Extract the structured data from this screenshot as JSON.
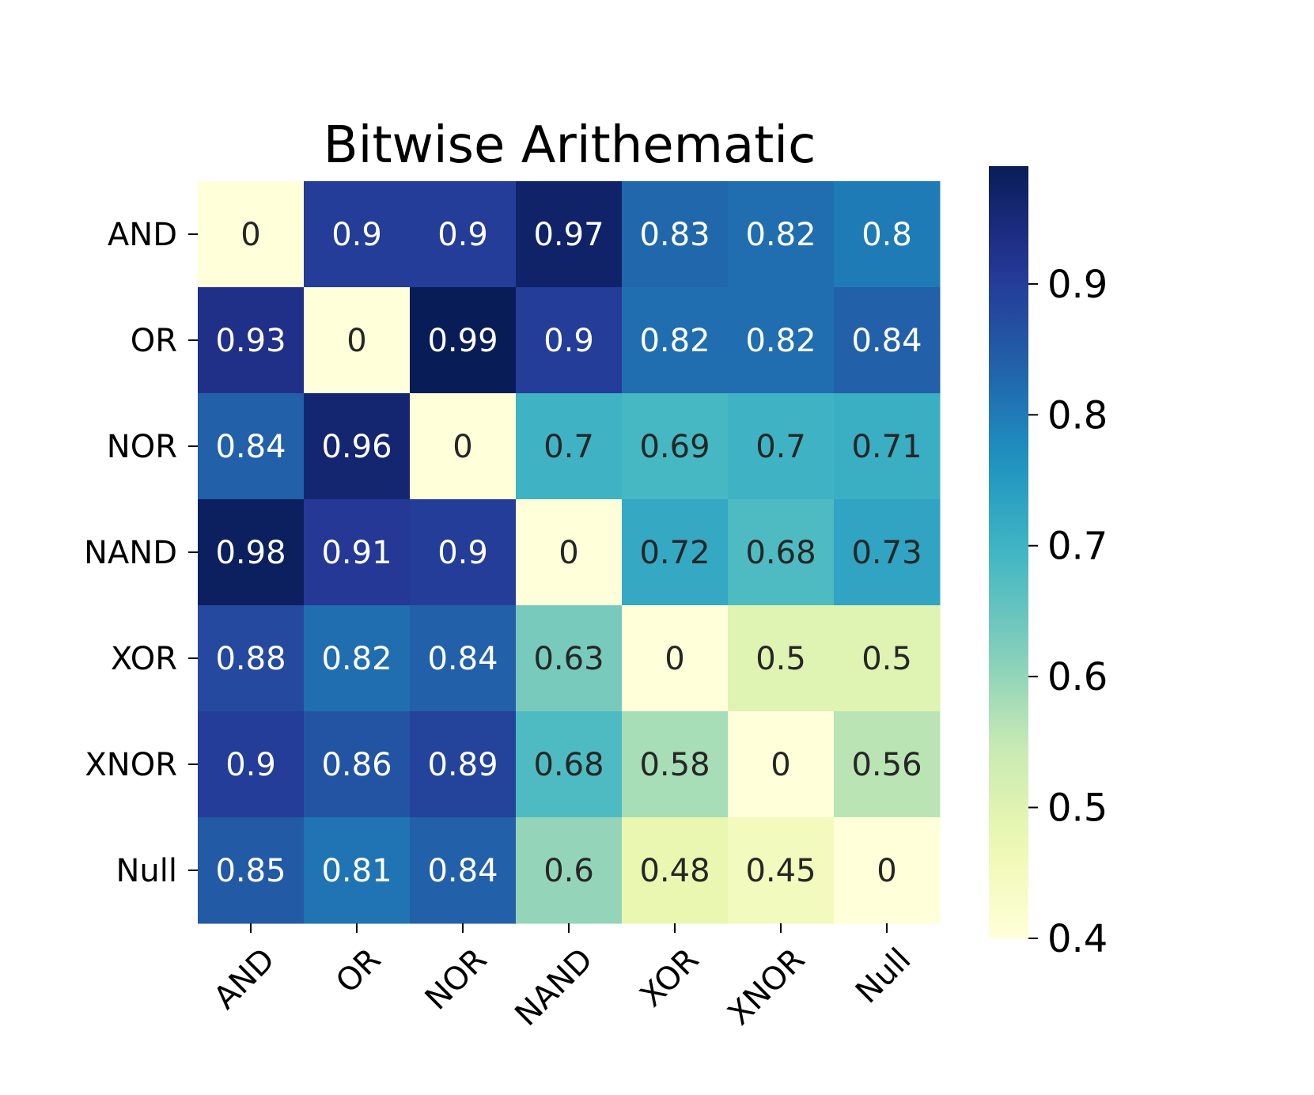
{
  "chart_data": {
    "type": "heatmap",
    "title": "Bitwise Arithematic",
    "rows": [
      "AND",
      "OR",
      "NOR",
      "NAND",
      "XOR",
      "XNOR",
      "Null"
    ],
    "columns": [
      "AND",
      "OR",
      "NOR",
      "NAND",
      "XOR",
      "XNOR",
      "Null"
    ],
    "values": [
      [
        0,
        0.9,
        0.9,
        0.97,
        0.83,
        0.82,
        0.8
      ],
      [
        0.93,
        0,
        0.99,
        0.9,
        0.82,
        0.82,
        0.84
      ],
      [
        0.84,
        0.96,
        0,
        0.7,
        0.69,
        0.7,
        0.71
      ],
      [
        0.98,
        0.91,
        0.9,
        0,
        0.72,
        0.68,
        0.73
      ],
      [
        0.88,
        0.82,
        0.84,
        0.63,
        0,
        0.5,
        0.5
      ],
      [
        0.9,
        0.86,
        0.89,
        0.68,
        0.58,
        0,
        0.56
      ],
      [
        0.85,
        0.81,
        0.84,
        0.6,
        0.48,
        0.45,
        0
      ]
    ],
    "annotations": true,
    "colormap": "YlGnBu",
    "colorbar": {
      "min": 0.4,
      "max": 0.99,
      "ticks": [
        0.4,
        0.5,
        0.6,
        0.7,
        0.8,
        0.9
      ],
      "tick_labels": [
        "0.4",
        "0.5",
        "0.6",
        "0.7",
        "0.8",
        "0.9"
      ]
    },
    "xlabel": "",
    "ylabel": ""
  }
}
